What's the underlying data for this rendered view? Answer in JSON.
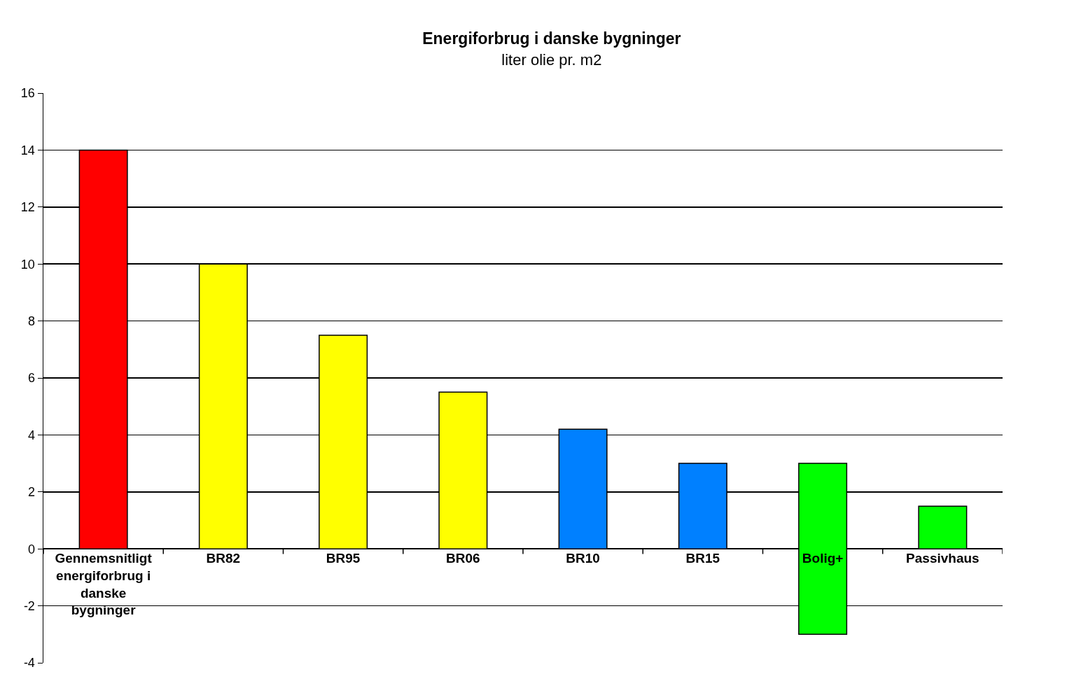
{
  "chart_data": {
    "type": "bar",
    "title": "Energiforbrug i danske bygninger",
    "subtitle": "liter olie pr. m2",
    "categories": [
      "Gennemsnitligt energiforbrug i danske bygninger",
      "BR82",
      "BR95",
      "BR06",
      "BR10",
      "BR15",
      "Bolig+",
      "Passivhaus"
    ],
    "values": [
      14,
      10,
      7.5,
      5.5,
      4.2,
      3,
      6,
      1.5
    ],
    "base": [
      0,
      0,
      0,
      0,
      0,
      0,
      -3,
      0
    ],
    "colors": [
      "#ff0000",
      "#ffff00",
      "#ffff00",
      "#ffff00",
      "#0080ff",
      "#0080ff",
      "#00ff00",
      "#00ff00"
    ],
    "ylim": [
      -4,
      16
    ],
    "yticks": [
      -4,
      -2,
      0,
      2,
      4,
      6,
      8,
      10,
      12,
      14,
      16
    ],
    "grid": "y"
  }
}
